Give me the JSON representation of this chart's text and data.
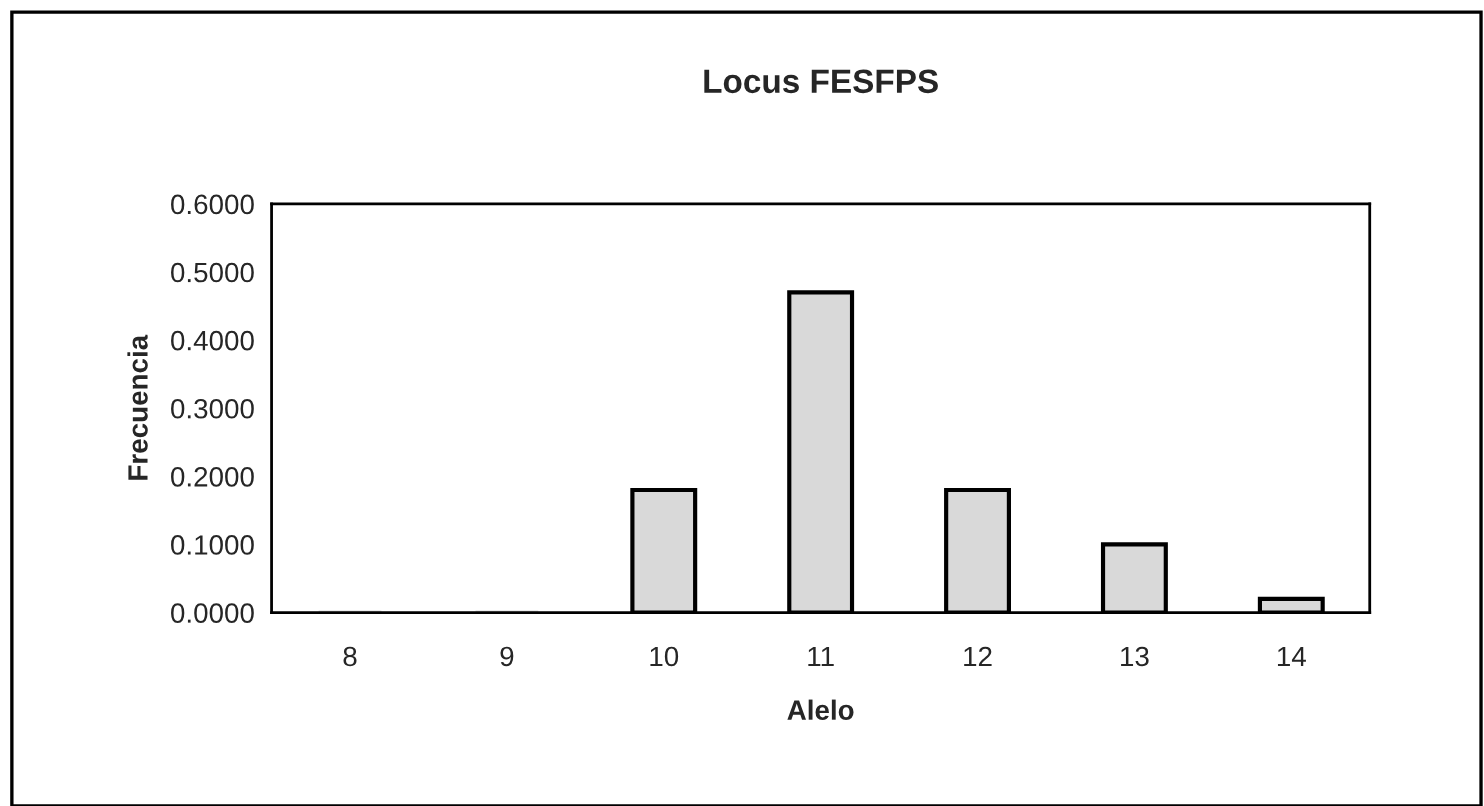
{
  "chart_data": {
    "type": "bar",
    "title": "Locus FESFPS",
    "xlabel": "Alelo",
    "ylabel": "Frecuencia",
    "categories": [
      "8",
      "9",
      "10",
      "11",
      "12",
      "13",
      "14"
    ],
    "values": [
      0.0,
      0.0,
      0.18,
      0.47,
      0.18,
      0.1,
      0.02
    ],
    "color": "#d9d9d9",
    "ylim": [
      0,
      0.6
    ],
    "yticks": [
      {
        "value": 0,
        "label": "0.0000"
      },
      {
        "value": 0.1,
        "label": "0.1000"
      },
      {
        "value": 0.2,
        "label": "0.2000"
      },
      {
        "value": 0.3,
        "label": "0.3000"
      },
      {
        "value": 0.4,
        "label": "0.4000"
      },
      {
        "value": 0.5,
        "label": "0.5000"
      },
      {
        "value": 0.6,
        "label": "0.6000"
      }
    ],
    "grid": false
  }
}
